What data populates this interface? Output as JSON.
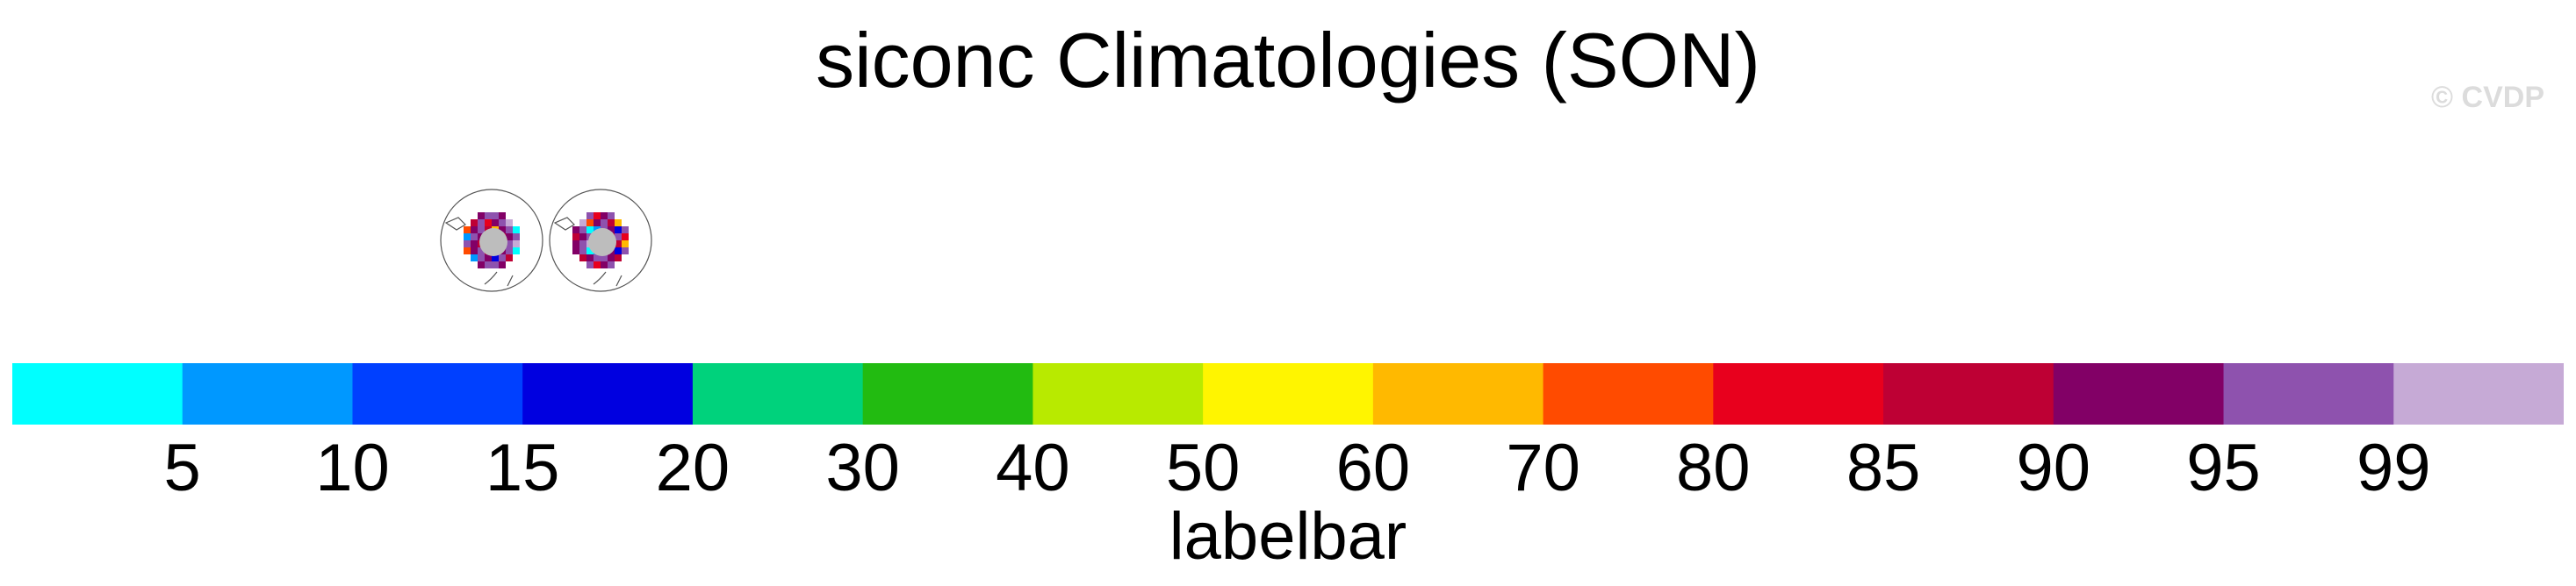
{
  "title": "siconc Climatologies (SON)",
  "watermark": "© CVDP",
  "chart_data": {
    "type": "heatmap",
    "title": "siconc Climatologies (SON)",
    "panels": [
      {
        "projection": "polar-stereographic",
        "hemisphere": "north",
        "land_color": "#bdbdbd"
      },
      {
        "projection": "polar-stereographic",
        "hemisphere": "north",
        "land_color": "#bdbdbd"
      }
    ],
    "colorbar": {
      "label": "labelbar",
      "levels": [
        "5",
        "10",
        "15",
        "20",
        "30",
        "40",
        "50",
        "60",
        "70",
        "80",
        "85",
        "90",
        "95",
        "99"
      ],
      "colors": [
        "#00ffff",
        "#0098ff",
        "#0040ff",
        "#0000e0",
        "#00d27c",
        "#22bb11",
        "#b8ea00",
        "#fff500",
        "#ffb900",
        "#ff4b00",
        "#e8001d",
        "#be0034",
        "#820066",
        "#8e52ae",
        "#c6aad6"
      ]
    }
  }
}
